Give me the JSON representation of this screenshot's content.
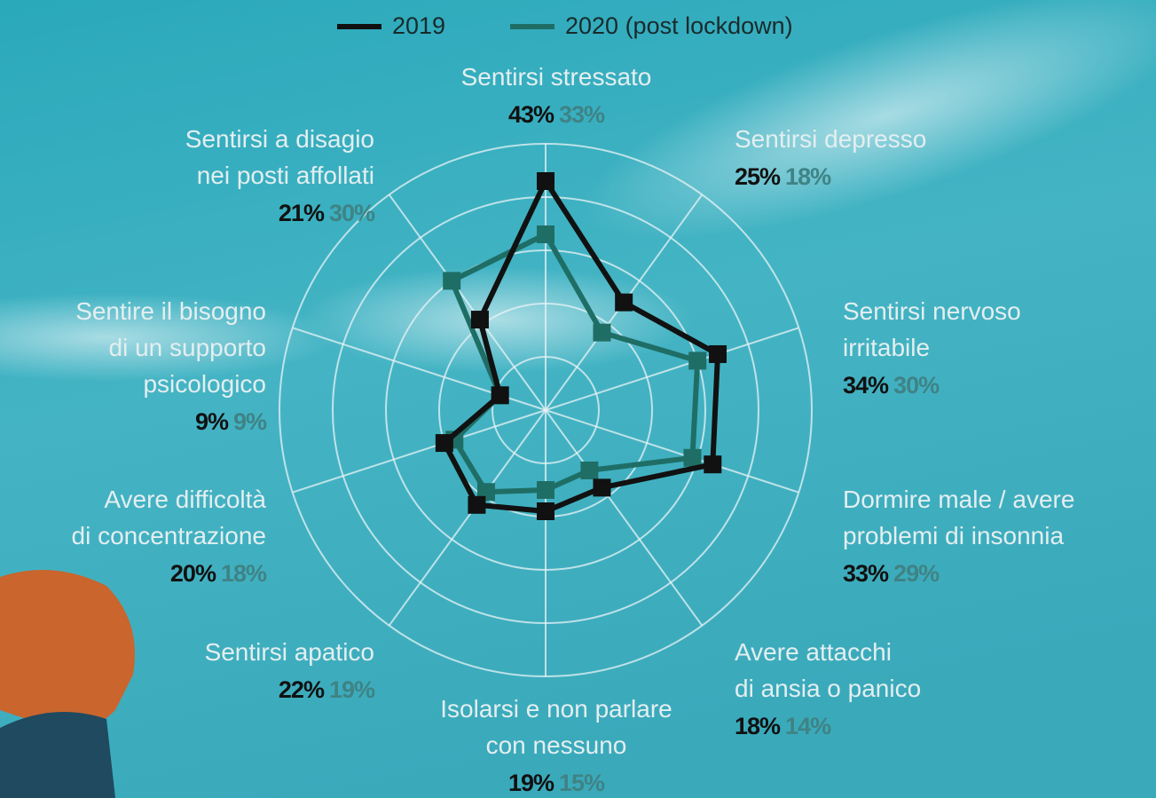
{
  "chart_data": {
    "type": "radar",
    "categories": [
      [
        "Sentirsi stressato"
      ],
      [
        "Sentirsi depresso"
      ],
      [
        "Sentirsi nervoso",
        "irritabile"
      ],
      [
        "Dormire male / avere",
        "problemi di insonnia"
      ],
      [
        "Avere attacchi",
        "di ansia o panico"
      ],
      [
        "Isolarsi e non parlare",
        "con nessuno"
      ],
      [
        "Sentirsi apatico"
      ],
      [
        "Avere difficoltà",
        "di concentrazione"
      ],
      [
        "Sentire il bisogno",
        "di un supporto",
        "psicologico"
      ],
      [
        "Sentirsi a disagio",
        "nei posti affollati"
      ]
    ],
    "series": [
      {
        "name": "2019",
        "color": "#111111",
        "label_color": "#111111",
        "values": [
          43,
          25,
          34,
          33,
          18,
          19,
          22,
          20,
          9,
          21
        ],
        "value_labels": [
          "43%",
          "25%",
          "34%",
          "33%",
          "18%",
          "19%",
          "22%",
          "20%",
          "9%",
          "21%"
        ]
      },
      {
        "name": "2020 (post lockdown)",
        "color": "#1f6e66",
        "label_color": "#3f8385",
        "values": [
          33,
          18,
          30,
          29,
          14,
          15,
          19,
          18,
          9,
          30
        ],
        "value_labels": [
          "33%",
          "18%",
          "30%",
          "29%",
          "14%",
          "15%",
          "19%",
          "18%",
          "9%",
          "30%"
        ]
      }
    ],
    "rlim": [
      0,
      50
    ],
    "rticks": [
      10,
      20,
      30,
      40,
      50
    ],
    "grid": true
  }
}
